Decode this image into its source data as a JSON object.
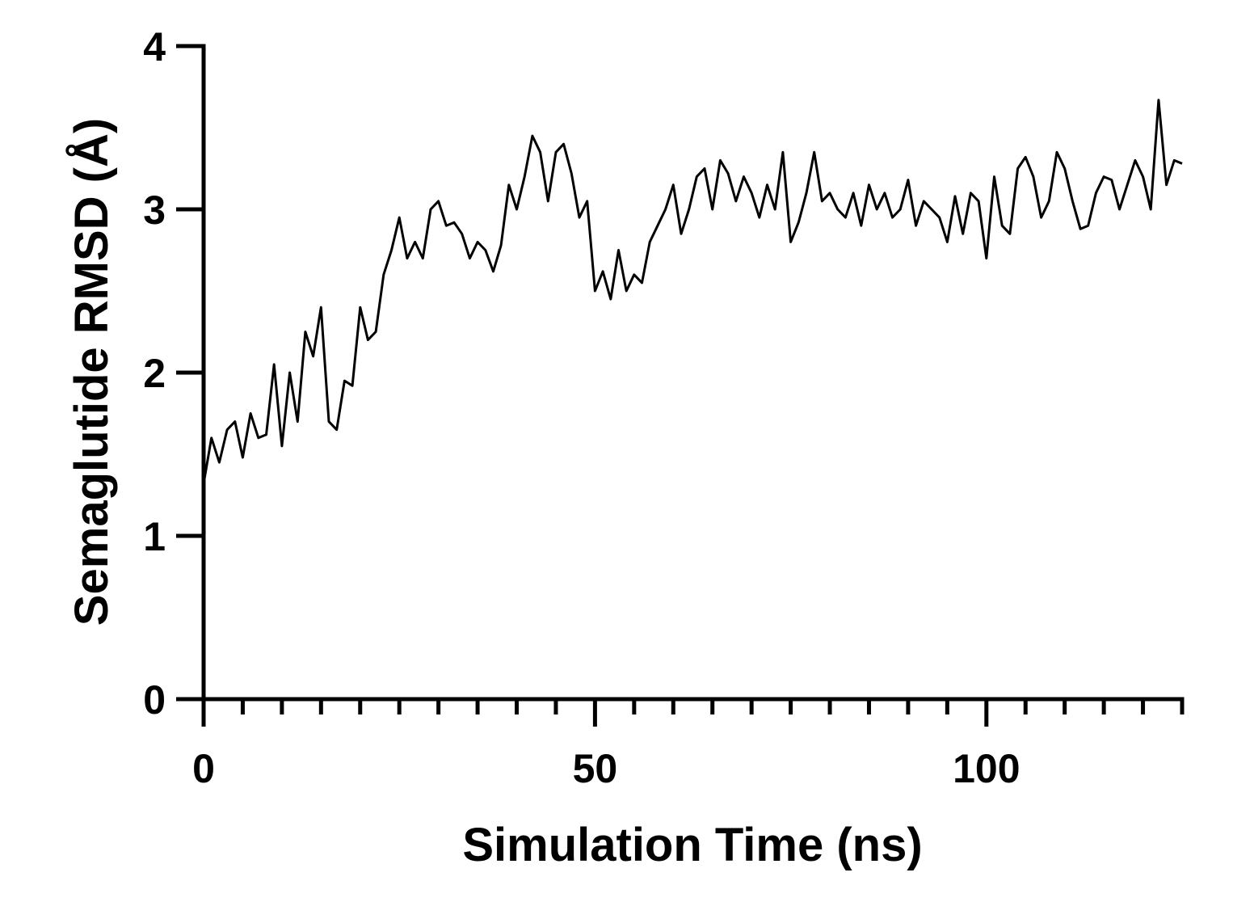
{
  "chart_data": {
    "type": "line",
    "title": "",
    "xlabel": "Simulation Time (ns)",
    "ylabel": "Semaglutide RMSD (Å)",
    "xlim": [
      0,
      125
    ],
    "ylim": [
      0,
      4
    ],
    "x_ticks": [
      0,
      50,
      100
    ],
    "x_minor_step": 5,
    "y_ticks": [
      0,
      1,
      2,
      3,
      4
    ],
    "grid": false,
    "line_color": "#000000",
    "series": [
      {
        "x": [
          0,
          1,
          2,
          3,
          4,
          5,
          6,
          7,
          8,
          9,
          10,
          11,
          12,
          13,
          14,
          15,
          16,
          17,
          18,
          19,
          20,
          21,
          22,
          23,
          24,
          25,
          26,
          27,
          28,
          29,
          30,
          31,
          32,
          33,
          34,
          35,
          36,
          37,
          38,
          39,
          40,
          41,
          42,
          43,
          44,
          45,
          46,
          47,
          48,
          49,
          50,
          51,
          52,
          53,
          54,
          55,
          56,
          57,
          58,
          59,
          60,
          61,
          62,
          63,
          64,
          65,
          66,
          67,
          68,
          69,
          70,
          71,
          72,
          73,
          74,
          75,
          76,
          77,
          78,
          79,
          80,
          81,
          82,
          83,
          84,
          85,
          86,
          87,
          88,
          89,
          90,
          91,
          92,
          93,
          94,
          95,
          96,
          97,
          98,
          99,
          100,
          101,
          102,
          103,
          104,
          105,
          106,
          107,
          108,
          109,
          110,
          111,
          112,
          113,
          114,
          115,
          116,
          117,
          118,
          119,
          120,
          121,
          122,
          123,
          124,
          125
        ],
        "values": [
          1.32,
          1.6,
          1.45,
          1.65,
          1.7,
          1.48,
          1.75,
          1.6,
          1.62,
          2.05,
          1.55,
          2.0,
          1.7,
          2.25,
          2.1,
          2.4,
          1.7,
          1.65,
          1.95,
          1.92,
          2.4,
          2.2,
          2.25,
          2.6,
          2.75,
          2.95,
          2.7,
          2.8,
          2.7,
          3.0,
          3.05,
          2.9,
          2.92,
          2.85,
          2.7,
          2.8,
          2.75,
          2.62,
          2.78,
          3.15,
          3.0,
          3.2,
          3.45,
          3.35,
          3.05,
          3.35,
          3.4,
          3.22,
          2.95,
          3.05,
          2.5,
          2.62,
          2.45,
          2.75,
          2.5,
          2.6,
          2.55,
          2.8,
          2.9,
          3.0,
          3.15,
          2.85,
          3.0,
          3.2,
          3.25,
          3.0,
          3.3,
          3.22,
          3.05,
          3.2,
          3.1,
          2.95,
          3.15,
          3.0,
          3.35,
          2.8,
          2.92,
          3.1,
          3.35,
          3.05,
          3.1,
          3.0,
          2.95,
          3.1,
          2.9,
          3.15,
          3.0,
          3.1,
          2.95,
          3.0,
          3.18,
          2.9,
          3.05,
          3.0,
          2.95,
          2.8,
          3.08,
          2.85,
          3.1,
          3.05,
          2.7,
          3.2,
          2.9,
          2.85,
          3.25,
          3.32,
          3.2,
          2.95,
          3.05,
          3.35,
          3.25,
          3.05,
          2.88,
          2.9,
          3.1,
          3.2,
          3.18,
          3.0,
          3.15,
          3.3,
          3.2,
          3.0,
          3.67,
          3.15,
          3.3,
          3.28
        ]
      }
    ]
  }
}
